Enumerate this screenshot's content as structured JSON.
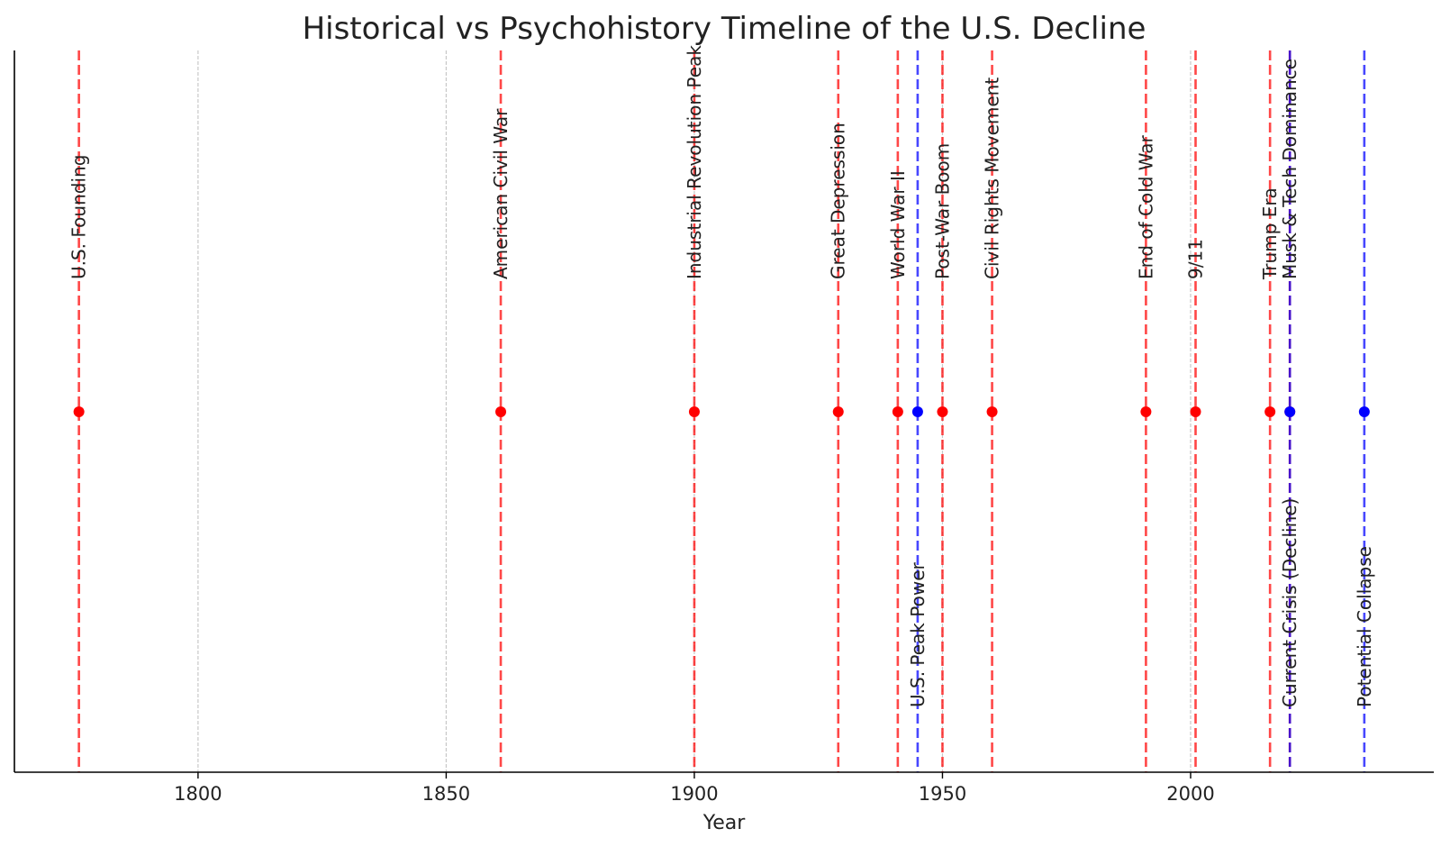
{
  "colors": {
    "historical": "#ff0000",
    "psychohistory": "#0000ff",
    "grid": "#c8c8c8",
    "axis": "#000000",
    "text": "#222222"
  },
  "chart_data": {
    "type": "scatter",
    "title": "Historical vs Psychohistory Timeline of the U.S. Decline",
    "xlabel": "Year",
    "ylabel": "",
    "xlim": [
      1763,
      2049
    ],
    "ylim": [
      -1,
      1
    ],
    "xticks": [
      1800,
      1850,
      1900,
      1950,
      2000
    ],
    "grid": "vertical lines at x ticks",
    "legend": "none",
    "series": [
      {
        "color": "#ff0000",
        "points": [
          {
            "x": 1776,
            "y": 0,
            "label": "U.S. Founding"
          },
          {
            "x": 1861,
            "y": 0,
            "label": "American Civil War"
          },
          {
            "x": 1900,
            "y": 0,
            "label": "Industrial Revolution Peak"
          },
          {
            "x": 1929,
            "y": 0,
            "label": "Great Depression"
          },
          {
            "x": 1941,
            "y": 0,
            "label": "World War II"
          },
          {
            "x": 1950,
            "y": 0,
            "label": "Post-War Boom"
          },
          {
            "x": 1960,
            "y": 0,
            "label": "Civil Rights Movement"
          },
          {
            "x": 1991,
            "y": 0,
            "label": "End of Cold War"
          },
          {
            "x": 2001,
            "y": 0,
            "label": "9/11"
          },
          {
            "x": 2016,
            "y": 0,
            "label": "Trump Era"
          },
          {
            "x": 2020,
            "y": 0,
            "label": "Musk & Tech Dominance"
          }
        ]
      },
      {
        "color": "#0000ff",
        "points": [
          {
            "x": 1945,
            "y": 0,
            "label": "U.S. Peak Power"
          },
          {
            "x": 2020,
            "y": 0,
            "label": "Current Crisis (Decline)"
          },
          {
            "x": 2035,
            "y": 0,
            "label": "Potential Collapse"
          }
        ]
      }
    ]
  }
}
